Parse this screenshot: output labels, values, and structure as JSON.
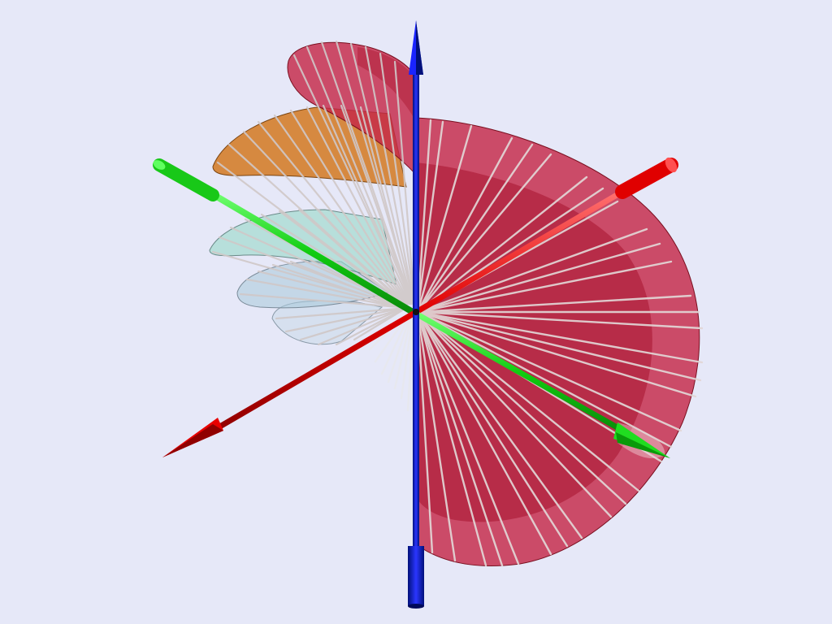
{
  "scene": {
    "background": "#e6e8f8",
    "axes": [
      {
        "id": "x-axis",
        "color": "#ff0000"
      },
      {
        "id": "y-axis",
        "color": "#00dd00"
      },
      {
        "id": "z-axis",
        "color": "#0000cc"
      }
    ],
    "surfaces": [
      {
        "id": "large-sheet",
        "color": "#c0203a"
      },
      {
        "id": "upper-petal",
        "color": "#c0203a"
      },
      {
        "id": "orange-petal",
        "color": "#d2781e"
      },
      {
        "id": "cyan-petal",
        "color": "#90c8c0"
      },
      {
        "id": "light-petal",
        "color": "#b8d0e0"
      }
    ],
    "ruling_color": "#d8d0d0"
  }
}
